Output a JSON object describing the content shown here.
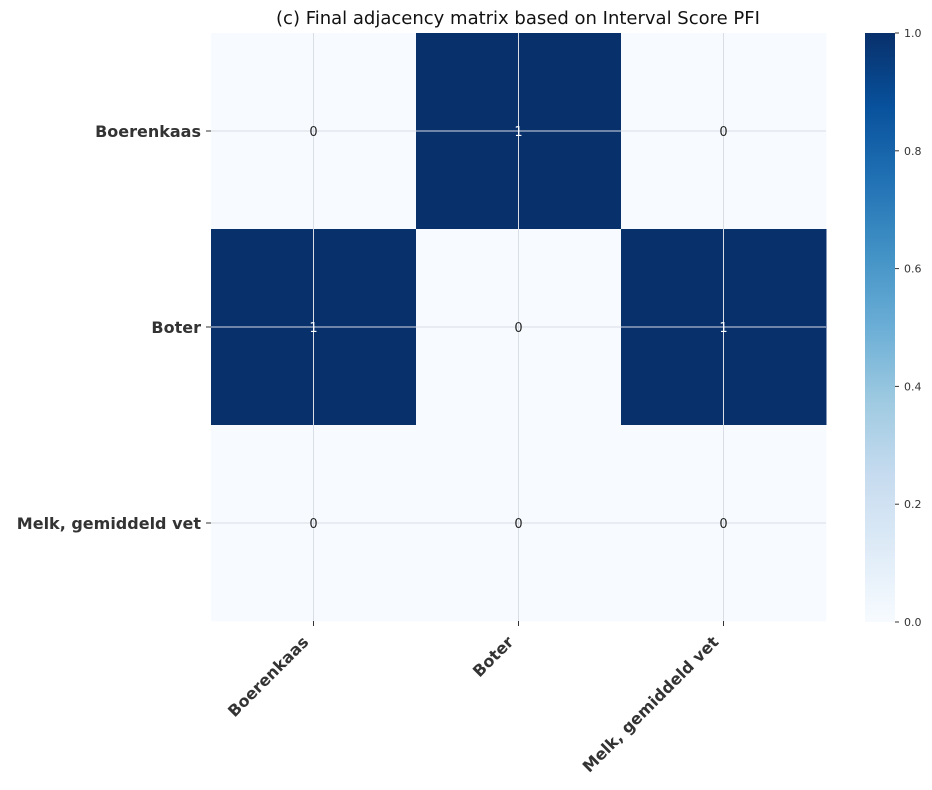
{
  "chart_data": {
    "type": "heatmap",
    "title": "(c) Final adjacency matrix based on Interval Score PFI",
    "rows": [
      "Boerenkaas",
      "Boter",
      "Melk, gemiddeld vet"
    ],
    "cols": [
      "Boerenkaas",
      "Boter",
      "Melk, gemiddeld vet"
    ],
    "values": [
      [
        0,
        1,
        0
      ],
      [
        1,
        0,
        1
      ],
      [
        0,
        0,
        0
      ]
    ],
    "colorbar": {
      "range": [
        0,
        1
      ],
      "ticks": [
        "0.0",
        "0.2",
        "0.4",
        "0.6",
        "0.8",
        "1.0"
      ],
      "colormap": "Blues",
      "low_color": "#f7fbff",
      "high_color": "#08306b"
    },
    "grid": true,
    "annotations": true
  }
}
